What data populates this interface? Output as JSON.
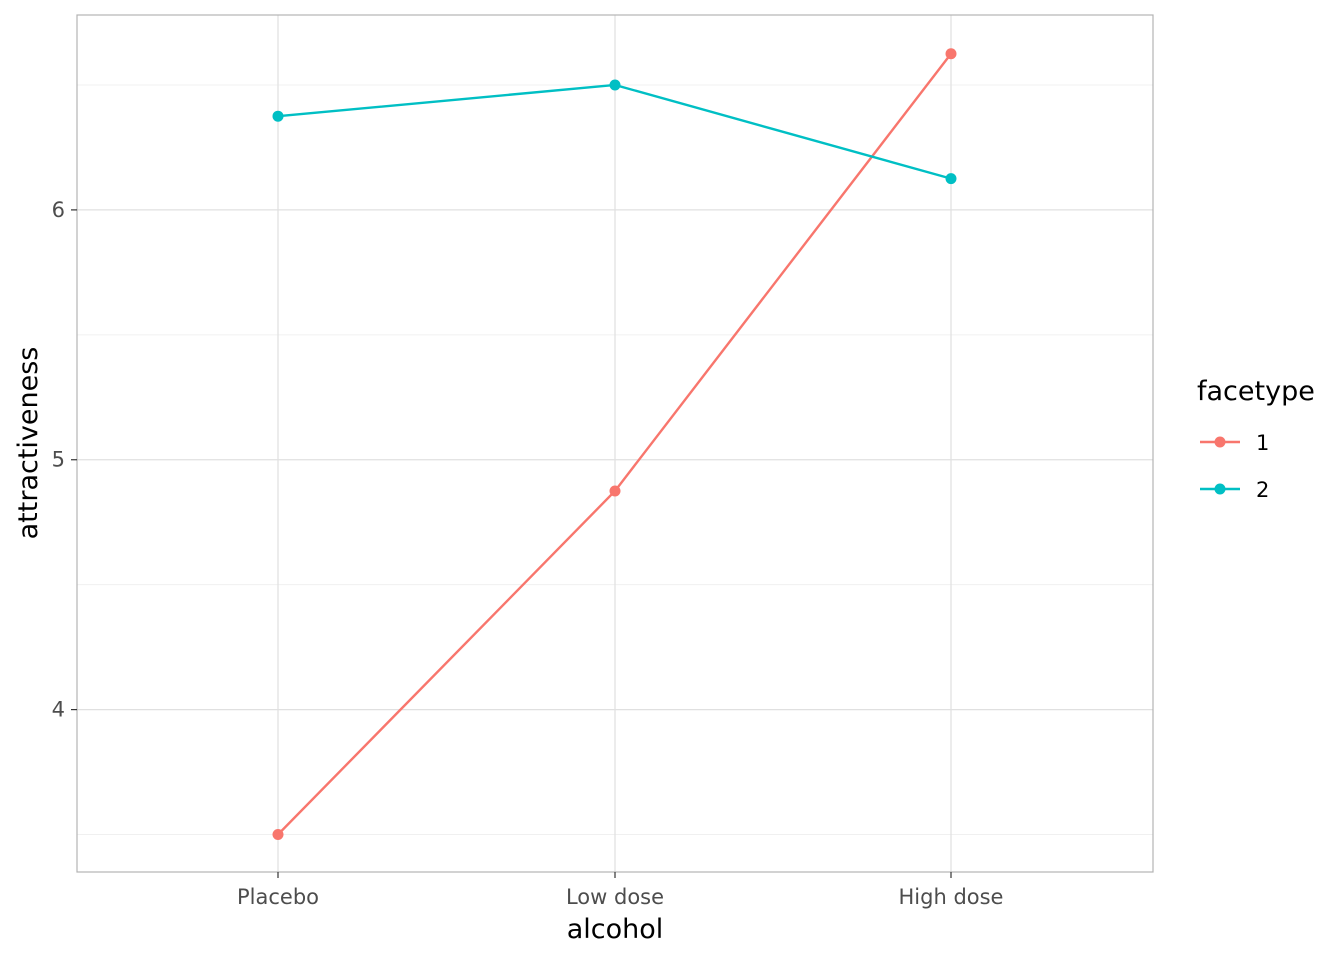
{
  "chart_data": {
    "type": "line",
    "title": "",
    "xlabel": "alcohol",
    "ylabel": "attractiveness",
    "categories": [
      "Placebo",
      "Low dose",
      "High dose"
    ],
    "yticks": [
      4,
      5,
      6
    ],
    "ylim": [
      3.35,
      6.78
    ],
    "grid": true,
    "legend": {
      "title": "facetype",
      "placement": "right"
    },
    "series": [
      {
        "name": "1",
        "color": "#F8766D",
        "values": [
          3.5,
          4.875,
          6.625
        ]
      },
      {
        "name": "2",
        "color": "#00BFC4",
        "values": [
          6.375,
          6.5,
          6.125
        ]
      }
    ]
  }
}
